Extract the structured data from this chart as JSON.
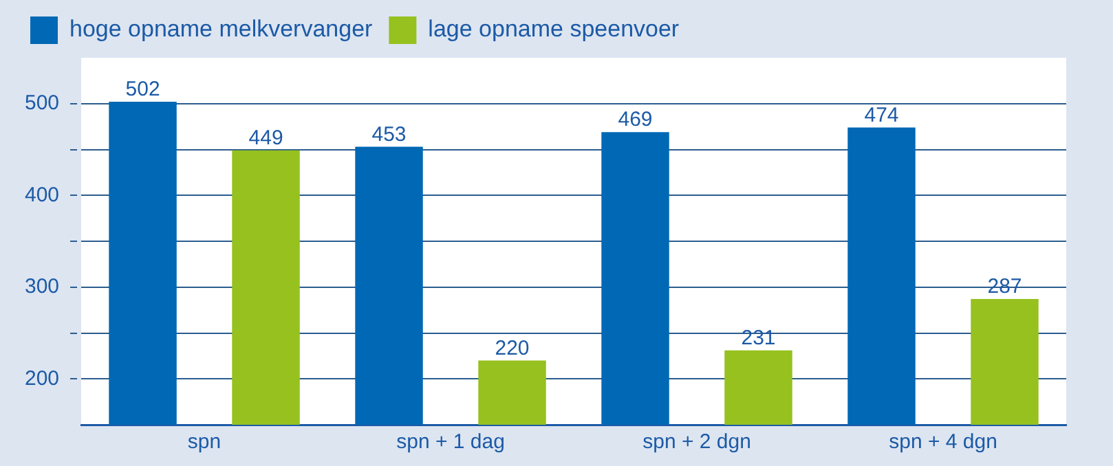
{
  "chart_data": {
    "type": "bar",
    "categories": [
      "spn",
      "spn + 1 dag",
      "spn + 2 dgn",
      "spn + 4 dgn"
    ],
    "series": [
      {
        "name": "hoge opname melkvervanger",
        "color": "#0068b4",
        "values": [
          502,
          453,
          469,
          474
        ]
      },
      {
        "name": "lage opname speenvoer",
        "color": "#96c11f",
        "values": [
          449,
          220,
          231,
          287
        ]
      }
    ],
    "ylim": [
      150,
      550
    ],
    "yticks": [
      200,
      {
        "value": 250,
        "label": null
      },
      300,
      {
        "value": 350,
        "label": null
      },
      400,
      {
        "value": 450,
        "label": null
      },
      500
    ],
    "grid": "y",
    "legend": "top left",
    "data_labels": true
  }
}
